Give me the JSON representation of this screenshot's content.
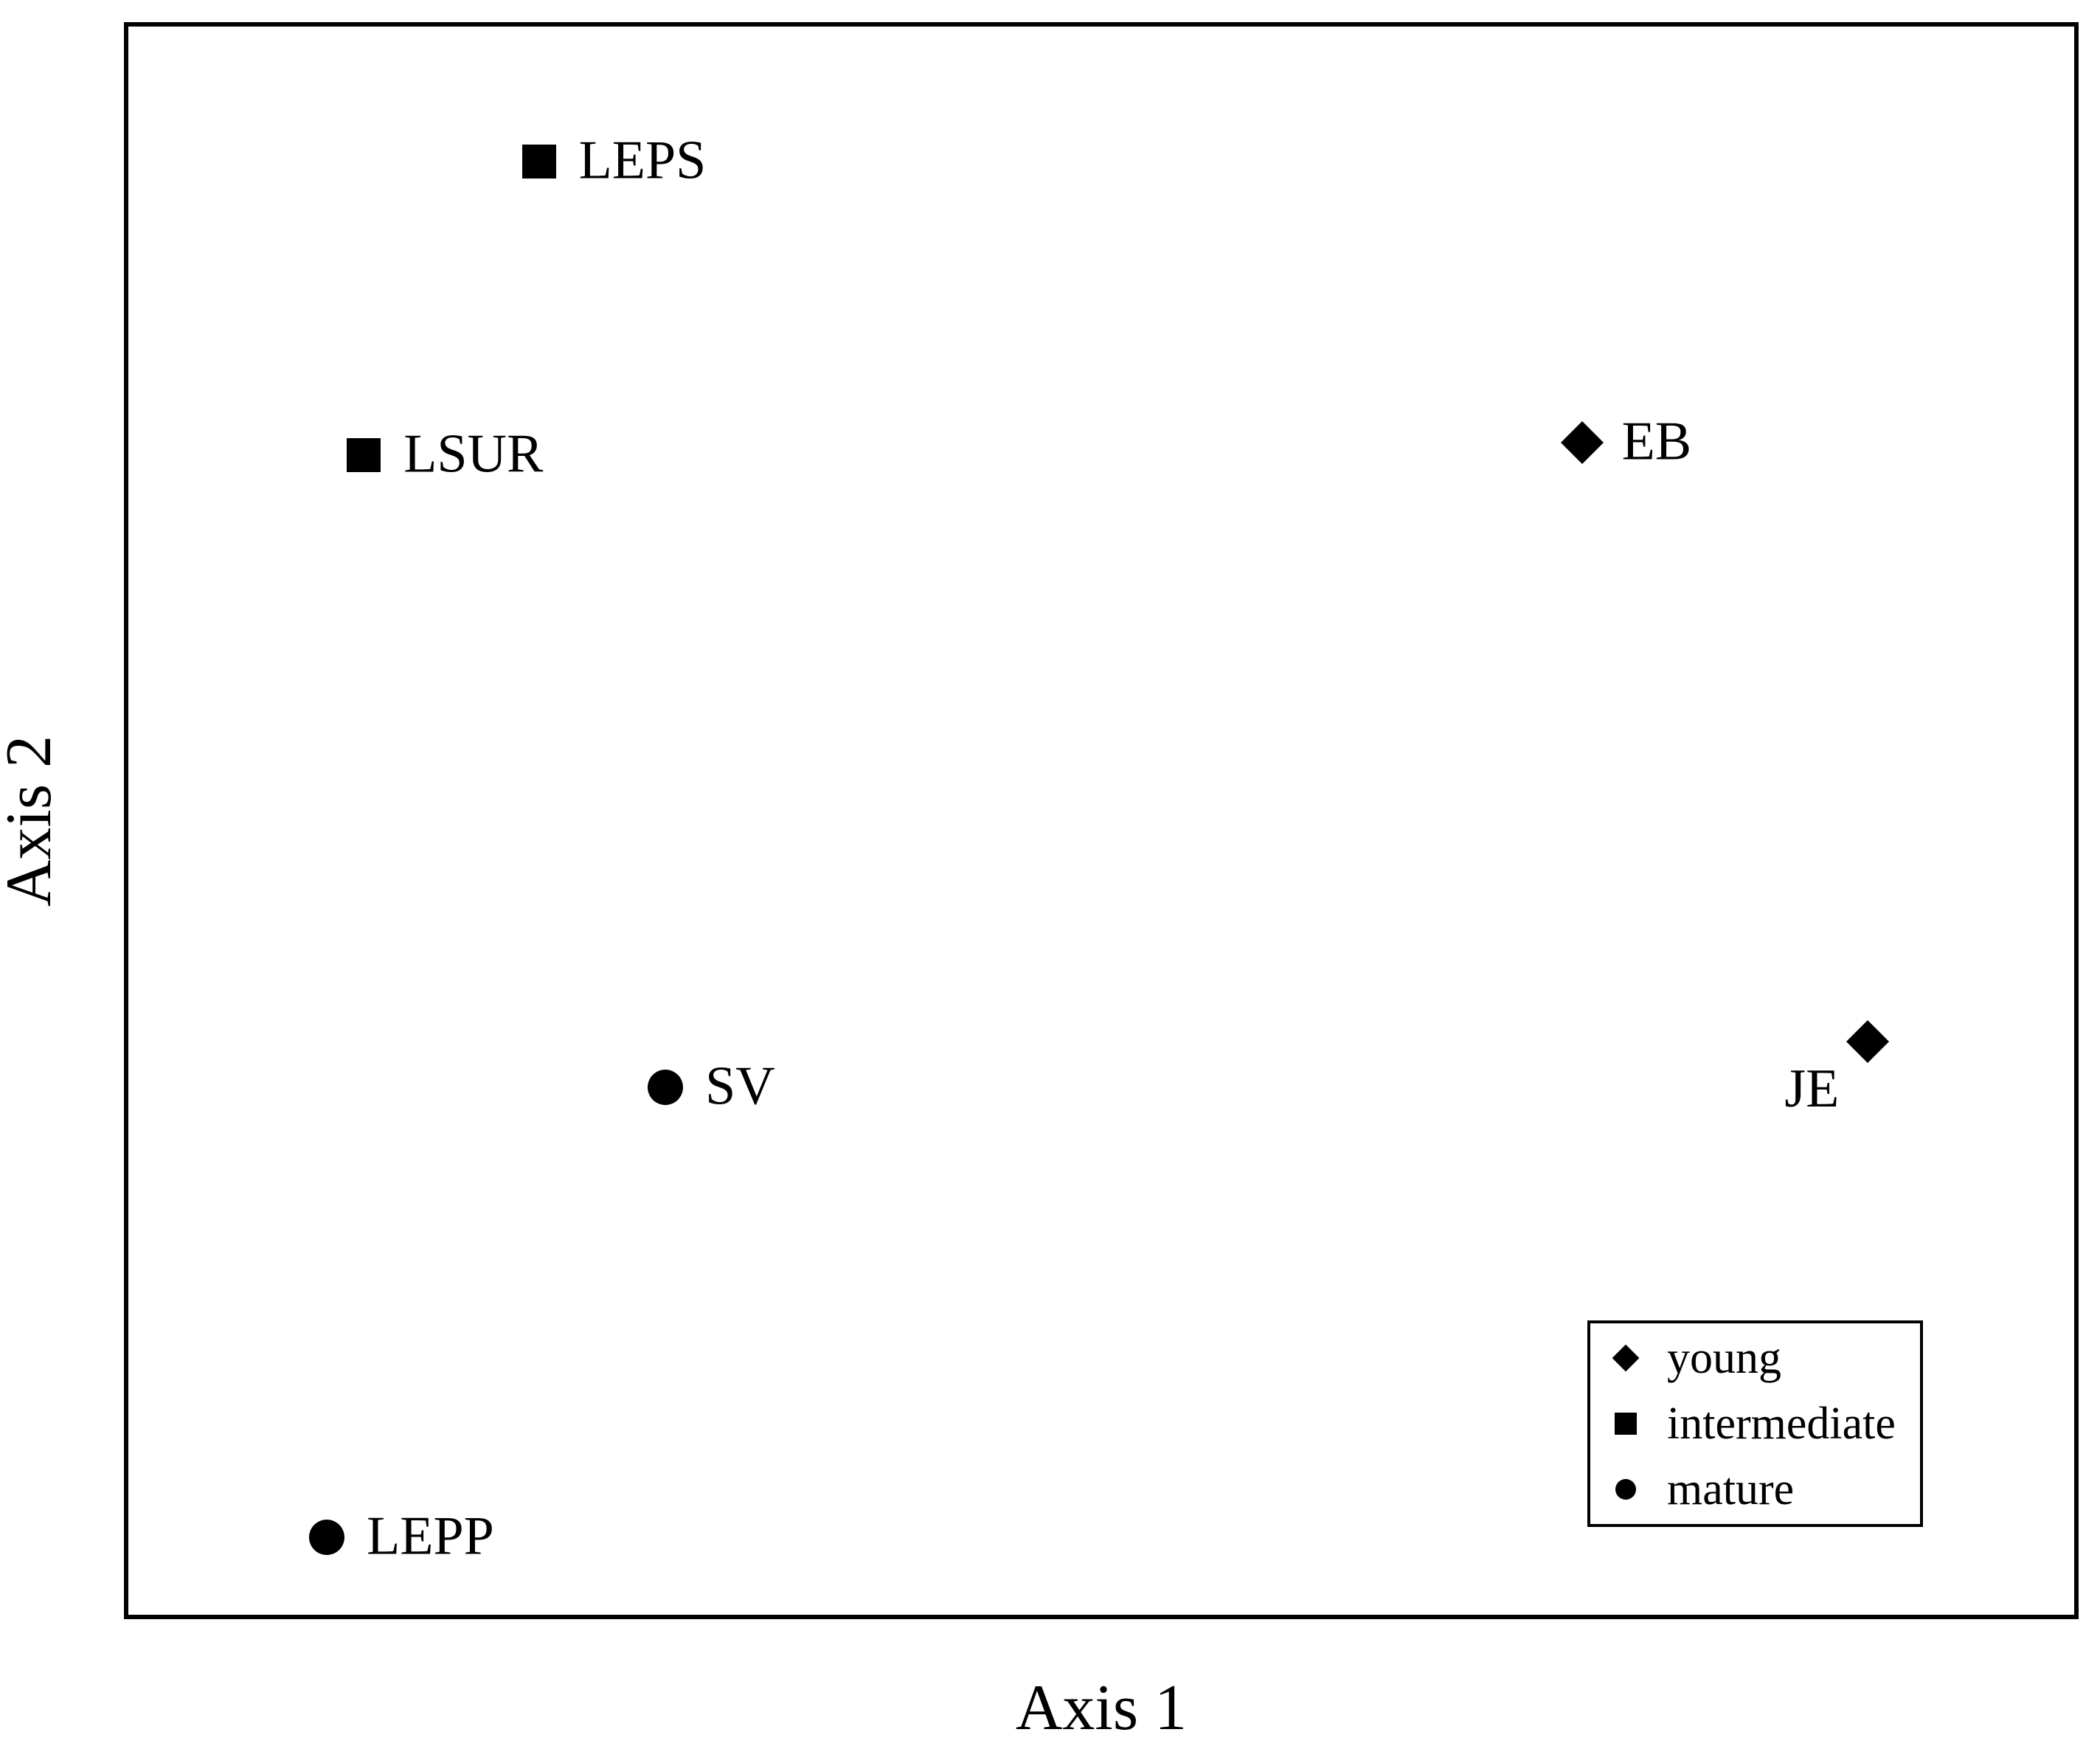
{
  "figure": {
    "background": "#ffffff",
    "frame_color": "#000000",
    "marker_color": "#000000"
  },
  "axes": {
    "x_label": "Axis 1",
    "y_label": "Axis 2"
  },
  "legend": {
    "position": "lower-right",
    "items": [
      {
        "marker": "diamond",
        "label": "young"
      },
      {
        "marker": "square",
        "label": "intermediate"
      },
      {
        "marker": "circle",
        "label": "mature"
      }
    ]
  },
  "chart_data": {
    "type": "scatter",
    "title": "",
    "xlabel": "Axis 1",
    "ylabel": "Axis 2",
    "xlim": [
      0,
      1
    ],
    "ylim": [
      0,
      1
    ],
    "grid": false,
    "tick_labels": "none",
    "legend_position": "lower-right",
    "marker_color": "#000000",
    "series": [
      {
        "name": "young",
        "marker": "diamond",
        "points": [
          {
            "label": "EB",
            "x": 0.747,
            "y": 0.738,
            "label_side": "right"
          },
          {
            "label": "JE",
            "x": 0.894,
            "y": 0.361,
            "label_side": "lower-left"
          }
        ]
      },
      {
        "name": "intermediate",
        "marker": "square",
        "points": [
          {
            "label": "LEPS",
            "x": 0.211,
            "y": 0.915,
            "label_side": "right"
          },
          {
            "label": "LSUR",
            "x": 0.121,
            "y": 0.73,
            "label_side": "right"
          }
        ]
      },
      {
        "name": "mature",
        "marker": "circle",
        "points": [
          {
            "label": "SV",
            "x": 0.276,
            "y": 0.332,
            "label_side": "right"
          },
          {
            "label": "LEPP",
            "x": 0.102,
            "y": 0.049,
            "label_side": "right"
          }
        ]
      }
    ]
  }
}
